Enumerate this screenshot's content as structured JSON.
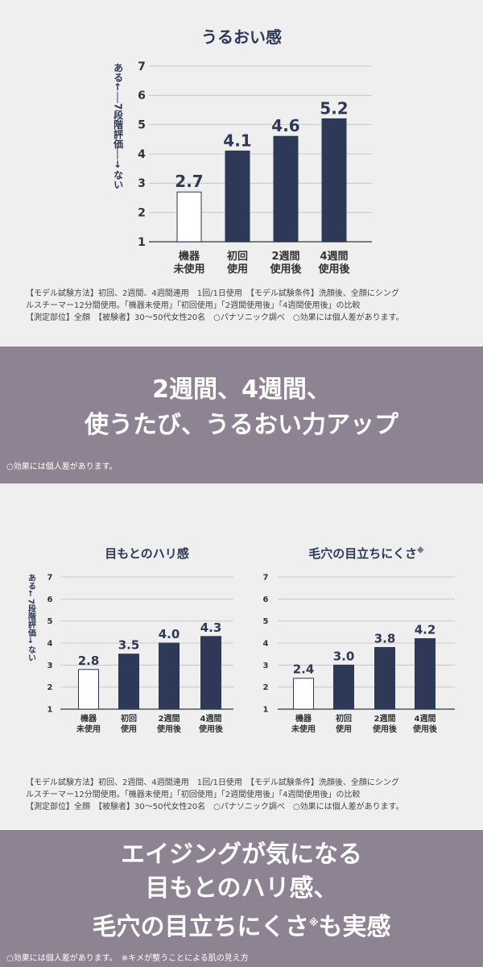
{
  "chart_data": [
    {
      "type": "bar",
      "title": "うるおい感",
      "ylabel_top": "ある",
      "ylabel_mid": "7段階評価",
      "ylabel_bottom": "ない",
      "ylim": [
        1,
        7
      ],
      "yticks": [
        "1",
        "2",
        "3",
        "4",
        "5",
        "6",
        "7"
      ],
      "categories": [
        [
          "機器",
          "未使用"
        ],
        [
          "初回",
          "使用"
        ],
        [
          "2週間",
          "使用後"
        ],
        [
          "4週間",
          "使用後"
        ]
      ],
      "values": [
        2.7,
        4.1,
        4.6,
        5.2
      ],
      "labels": [
        "2.7",
        "4.1",
        "4.6",
        "5.2"
      ]
    },
    {
      "type": "bar",
      "title": "目もとのハリ感",
      "ylabel_top": "ある",
      "ylabel_mid": "7段階評価",
      "ylabel_bottom": "ない",
      "ylim": [
        1,
        7
      ],
      "yticks": [
        "1",
        "2",
        "3",
        "4",
        "5",
        "6",
        "7"
      ],
      "categories": [
        [
          "機器",
          "未使用"
        ],
        [
          "初回",
          "使用"
        ],
        [
          "2週間",
          "使用後"
        ],
        [
          "4週間",
          "使用後"
        ]
      ],
      "values": [
        2.8,
        3.5,
        4.0,
        4.3
      ],
      "labels": [
        "2.8",
        "3.5",
        "4.0",
        "4.3"
      ]
    },
    {
      "type": "bar",
      "title": "毛穴の目立ちにくさ",
      "title_mark": "※",
      "ylim": [
        1,
        7
      ],
      "yticks": [
        "1",
        "2",
        "3",
        "4",
        "5",
        "6",
        "7"
      ],
      "categories": [
        [
          "機器",
          "未使用"
        ],
        [
          "初回",
          "使用"
        ],
        [
          "2週間",
          "使用後"
        ],
        [
          "4週間",
          "使用後"
        ]
      ],
      "values": [
        2.4,
        3.0,
        3.8,
        4.2
      ],
      "labels": [
        "2.4",
        "3.0",
        "3.8",
        "4.2"
      ]
    }
  ],
  "notes1": [
    "【モデル試験方法】初回、2週間、4週間連用　1回/1日使用　【モデル試験条件】洗顔後、全顔にシング",
    "ルスチーマー12分間使用。「機器未使用」「初回使用」「2週間使用後」「4週間使用後」の比較",
    "【測定部位】全顔　【被験者】30〜50代女性20名　○パナソニック調べ　○効果には個人差があります。"
  ],
  "notes2": [
    "【モデル試験方法】初回、2週間、4週間連用　1回/1日使用　【モデル試験条件】洗顔後、全顔にシング",
    "ルスチーマー12分間使用。「機器未使用」「初回使用」「2週間使用後」「4週間使用後」の比較",
    "【測定部位】全顔　【被験者】30〜50代女性20名　○パナソニック調べ　○効果には個人差があります。"
  ],
  "band1": {
    "lines": [
      "2週間、4週間、",
      "使うたび、うるおい力アップ"
    ],
    "note": "○効果には個人差があります。"
  },
  "band2": {
    "lines": [
      "エイジングが気になる",
      "目もとのハリ感、",
      "毛穴の目立ちにくさ",
      "も実感"
    ],
    "mark": "※",
    "note": "○効果には個人差があります。　※キメが整うことによる肌の見え方"
  },
  "colors": {
    "bar": "#2e3857",
    "bar_empty": "#ffffff",
    "band": "#8d8392",
    "grid": "#c8c8c8"
  }
}
